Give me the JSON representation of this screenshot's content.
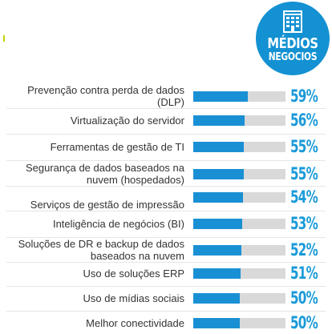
{
  "badge": {
    "line1": "MÉDIOS",
    "line2": "NEGOCIOS",
    "icon": "building-icon",
    "color": "#1391d2"
  },
  "colors": {
    "bar": "#1a90d4",
    "track": "#d9d9d9",
    "value_text": "#1a9ad8"
  },
  "chart_data": {
    "type": "bar",
    "orientation": "horizontal",
    "title": "",
    "xlabel": "",
    "ylabel": "",
    "xlim": [
      0,
      100
    ],
    "grid": false,
    "categories": [
      "Prevenção contra perda de dados (DLP)",
      "Virtualização do servidor",
      "Ferramentas de gestão de TI",
      "Segurança de dados baseados na nuvem (hospedados)",
      "Serviços de gestão de impressão",
      "Inteligência de negócios (BI)",
      "Soluções de DR e backup de dados baseados na nuvem",
      "Uso de soluções ERP",
      "Uso de mídias sociais",
      "Melhor conectividade"
    ],
    "values": [
      59,
      56,
      55,
      55,
      54,
      53,
      52,
      51,
      50,
      50
    ],
    "value_labels": [
      "59%",
      "56%",
      "55%",
      "55%",
      "54%",
      "53%",
      "52%",
      "51%",
      "50%",
      "50%"
    ]
  }
}
